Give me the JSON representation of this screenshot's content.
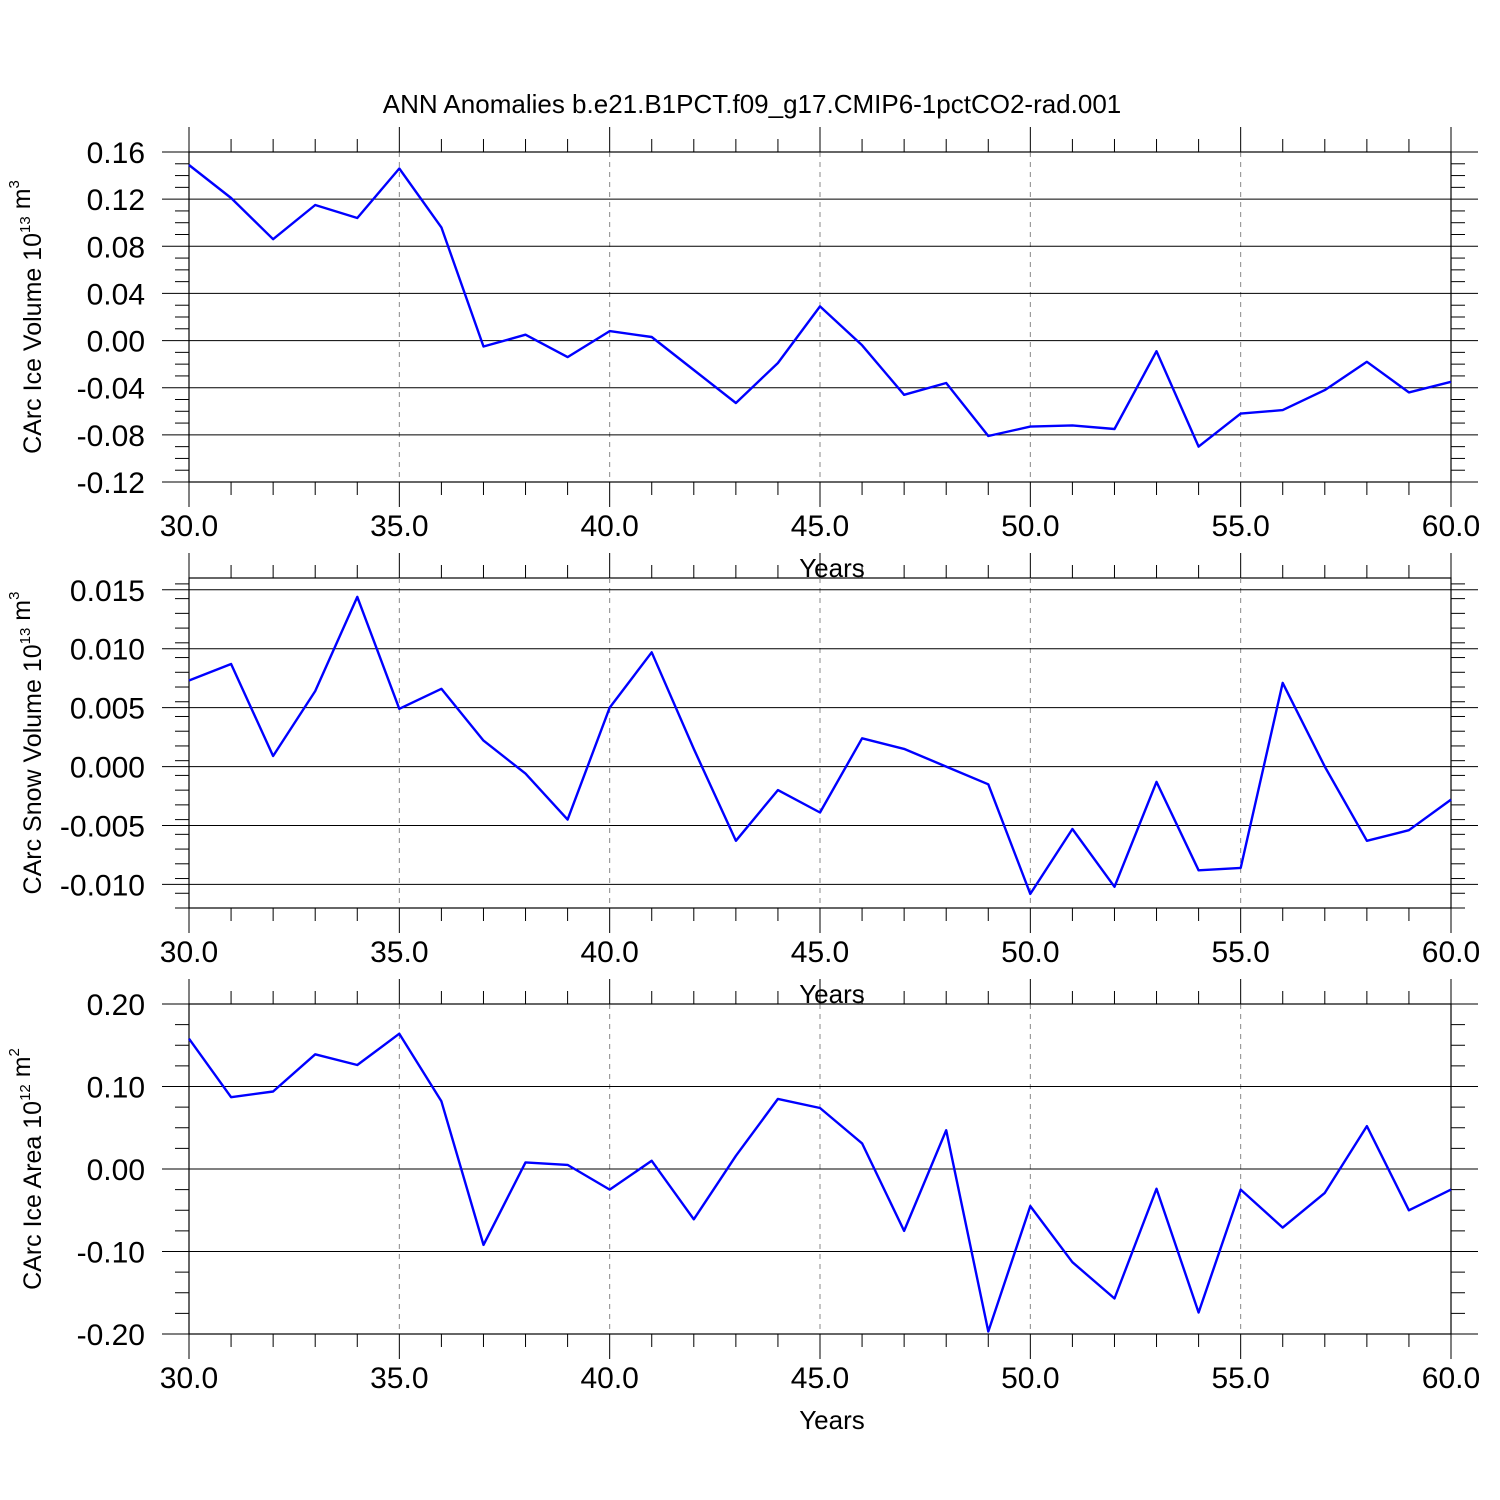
{
  "figure": {
    "title": "ANN Anomalies b.e21.B1PCT.f09_g17.CMIP6-1pctCO2-rad.001",
    "line_color": "#0000ff",
    "grid_color": "#888888"
  },
  "chart_data": [
    {
      "type": "line",
      "name": "ice-volume",
      "xlabel": "Years",
      "ylabel": {
        "text": "CArc Ice Volume 10",
        "sup": "13",
        "unit": " m",
        "unit_sup": "3"
      },
      "xlim": [
        30,
        60
      ],
      "ylim": [
        -0.12,
        0.16
      ],
      "yticks": [
        0.16,
        0.12,
        0.08,
        0.04,
        0.0,
        -0.04,
        -0.08,
        -0.12
      ],
      "ytick_labels": [
        "0.16",
        "0.12",
        "0.08",
        "0.04",
        "0.00",
        "-0.04",
        "-0.08",
        "-0.12"
      ],
      "xticks": [
        30,
        35,
        40,
        45,
        50,
        55,
        60
      ],
      "xtick_labels": [
        "30.0",
        "35.0",
        "40.0",
        "45.0",
        "50.0",
        "55.0",
        "60.0"
      ],
      "x": [
        30,
        31,
        32,
        33,
        34,
        35,
        36,
        37,
        38,
        39,
        40,
        41,
        42,
        43,
        44,
        45,
        46,
        47,
        48,
        49,
        50,
        51,
        52,
        53,
        54,
        55,
        56,
        57,
        58,
        59,
        60
      ],
      "values": [
        0.149,
        0.121,
        0.086,
        0.115,
        0.104,
        0.146,
        0.096,
        -0.005,
        0.005,
        -0.014,
        0.008,
        0.003,
        -0.025,
        -0.053,
        -0.019,
        0.029,
        -0.004,
        -0.046,
        -0.036,
        -0.081,
        -0.073,
        -0.072,
        -0.075,
        -0.009,
        -0.09,
        -0.062,
        -0.059,
        -0.042,
        -0.018,
        -0.044,
        -0.035
      ]
    },
    {
      "type": "line",
      "name": "snow-volume",
      "xlabel": "Years",
      "ylabel": {
        "text": "CArc Snow Volume 10",
        "sup": "13",
        "unit": " m",
        "unit_sup": "3"
      },
      "xlim": [
        30,
        60
      ],
      "ylim": [
        -0.012,
        0.016
      ],
      "yticks": [
        0.015,
        0.01,
        0.005,
        0.0,
        -0.005,
        -0.01
      ],
      "ytick_labels": [
        "0.015",
        "0.010",
        "0.005",
        "0.000",
        "-0.005",
        "-0.010"
      ],
      "xticks": [
        30,
        35,
        40,
        45,
        50,
        55,
        60
      ],
      "xtick_labels": [
        "30.0",
        "35.0",
        "40.0",
        "45.0",
        "50.0",
        "55.0",
        "60.0"
      ],
      "x": [
        30,
        31,
        32,
        33,
        34,
        35,
        36,
        37,
        38,
        39,
        40,
        41,
        42,
        43,
        44,
        45,
        46,
        47,
        48,
        49,
        50,
        51,
        52,
        53,
        54,
        55,
        56,
        57,
        58,
        59,
        60
      ],
      "values": [
        0.0073,
        0.0087,
        0.0009,
        0.0064,
        0.0144,
        0.0049,
        0.0066,
        0.0022,
        -0.0006,
        -0.0045,
        0.005,
        0.0097,
        0.0015,
        -0.0063,
        -0.002,
        -0.0039,
        0.0024,
        0.0015,
        0.0,
        -0.0015,
        -0.0108,
        -0.0053,
        -0.0102,
        -0.0013,
        -0.0088,
        -0.0086,
        0.0071,
        0.0,
        -0.0063,
        -0.0054,
        -0.0028
      ]
    },
    {
      "type": "line",
      "name": "ice-area",
      "xlabel": "Years",
      "ylabel": {
        "text": "CArc Ice Area 10",
        "sup": "12",
        "unit": " m",
        "unit_sup": "2"
      },
      "xlim": [
        30,
        60
      ],
      "ylim": [
        -0.2,
        0.2
      ],
      "yticks": [
        0.2,
        0.1,
        0.0,
        -0.1,
        -0.2
      ],
      "ytick_labels": [
        "0.20",
        "0.10",
        "0.00",
        "-0.10",
        "-0.20"
      ],
      "xticks": [
        30,
        35,
        40,
        45,
        50,
        55,
        60
      ],
      "xtick_labels": [
        "30.0",
        "35.0",
        "40.0",
        "45.0",
        "50.0",
        "55.0",
        "60.0"
      ],
      "x": [
        30,
        31,
        32,
        33,
        34,
        35,
        36,
        37,
        38,
        39,
        40,
        41,
        42,
        43,
        44,
        45,
        46,
        47,
        48,
        49,
        50,
        51,
        52,
        53,
        54,
        55,
        56,
        57,
        58,
        59,
        60
      ],
      "values": [
        0.158,
        0.087,
        0.094,
        0.139,
        0.126,
        0.164,
        0.082,
        -0.092,
        0.008,
        0.005,
        -0.025,
        0.01,
        -0.061,
        0.016,
        0.085,
        0.074,
        0.031,
        -0.075,
        0.047,
        -0.197,
        -0.045,
        -0.113,
        -0.157,
        -0.024,
        -0.174,
        -0.025,
        -0.071,
        -0.029,
        0.052,
        -0.05,
        -0.025
      ]
    }
  ]
}
